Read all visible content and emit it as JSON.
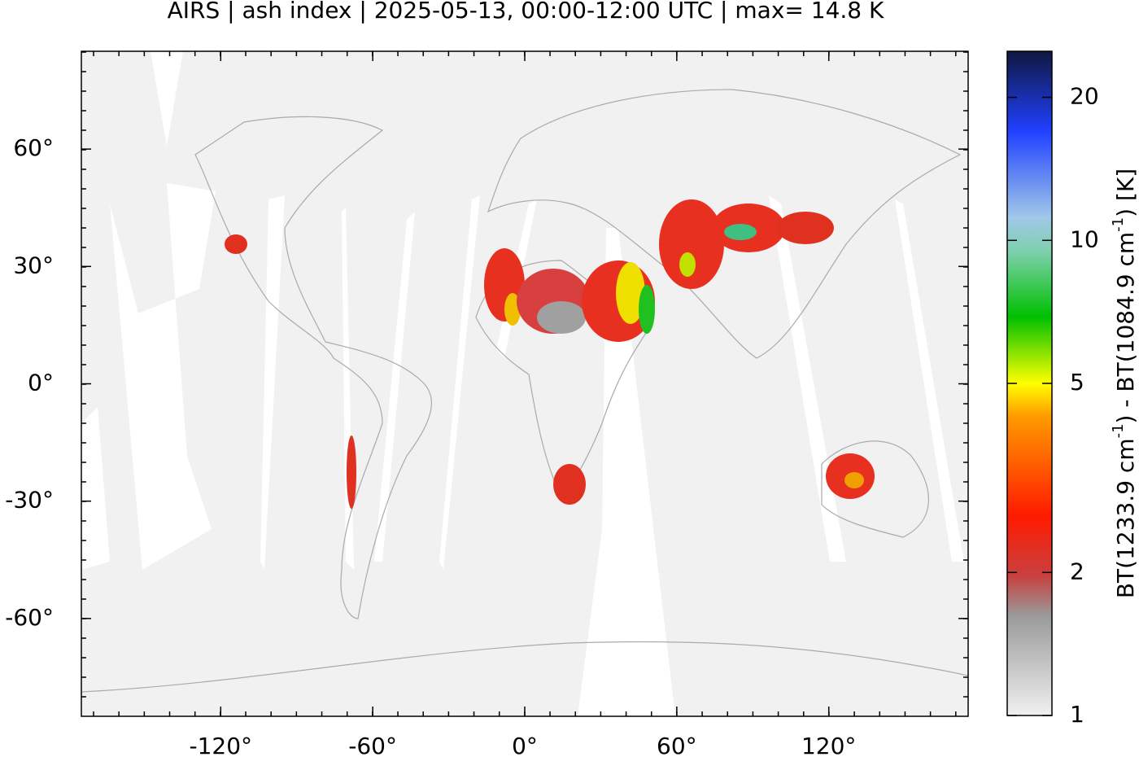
{
  "chart_data": {
    "type": "map",
    "title": "AIRS | ash index | 2025-05-13, 00:00-12:00 UTC | max= 14.8 K",
    "xlim": [
      -175,
      175
    ],
    "ylim": [
      -85,
      85
    ],
    "xticks": [
      {
        "value": -120,
        "label": "-120°"
      },
      {
        "value": -60,
        "label": "-60°"
      },
      {
        "value": 0,
        "label": "0°"
      },
      {
        "value": 60,
        "label": "60°"
      },
      {
        "value": 120,
        "label": "120°"
      }
    ],
    "yticks": [
      {
        "value": -60,
        "label": "-60°"
      },
      {
        "value": -30,
        "label": "-30°"
      },
      {
        "value": 0,
        "label": "0°"
      },
      {
        "value": 30,
        "label": "30°"
      },
      {
        "value": 60,
        "label": "60°"
      }
    ],
    "colorbar": {
      "clim": [
        1,
        25
      ],
      "log": true,
      "ticks": [
        1,
        2,
        5,
        10,
        20
      ],
      "label": [
        "BT(1233.9 cm",
        "-1",
        ") - BT(1084.9 cm",
        "-1",
        ") [K]"
      ]
    }
  }
}
